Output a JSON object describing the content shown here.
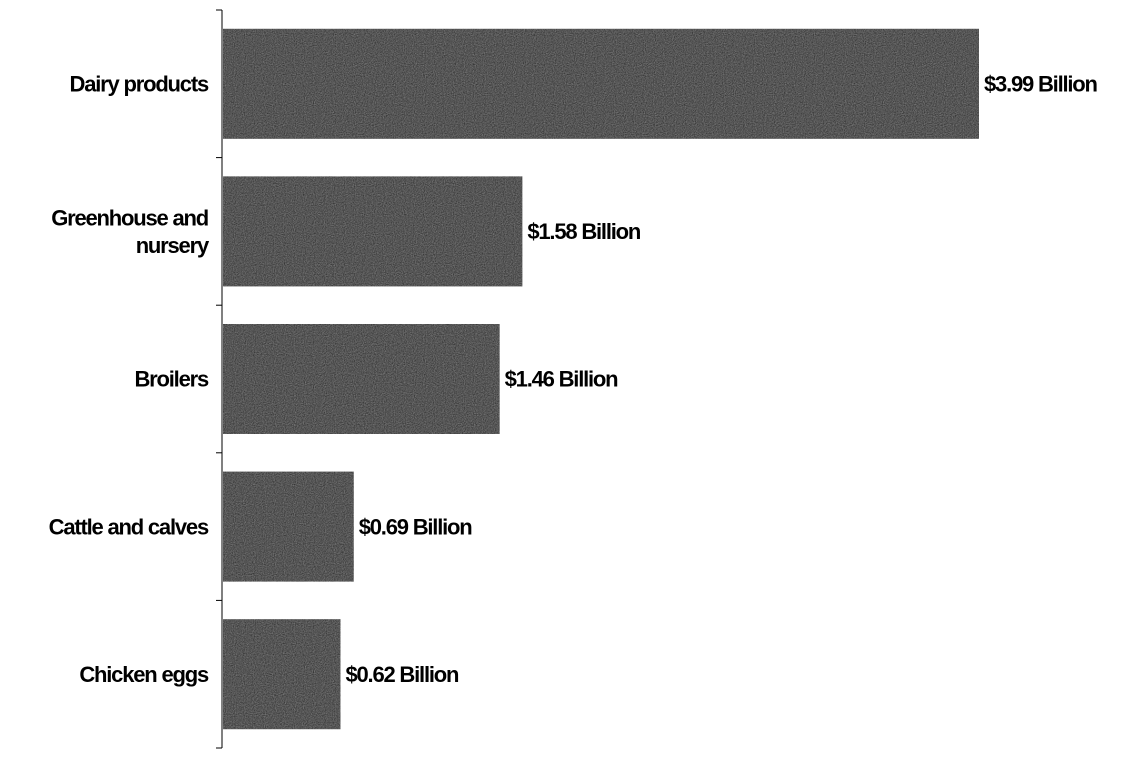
{
  "chart_data": {
    "type": "bar",
    "orientation": "horizontal",
    "categories": [
      [
        "Dairy products"
      ],
      [
        "Greenhouse and",
        "nursery"
      ],
      [
        "Broilers"
      ],
      [
        "Cattle and calves"
      ],
      [
        "Chicken eggs"
      ]
    ],
    "values": [
      3.99,
      1.58,
      1.46,
      0.69,
      0.62
    ],
    "data_labels": [
      "$3.99 Billion",
      "$1.58 Billion",
      "$1.46 Billion",
      "$0.69 Billion",
      "$0.62 Billion"
    ],
    "title": "",
    "xlabel": "",
    "ylabel": "",
    "xlim": [
      0,
      3.99
    ],
    "grid": false,
    "legend": "none",
    "colors": {
      "bar": "#1c1c1c",
      "axis": "#000000",
      "text": "#000000"
    }
  }
}
